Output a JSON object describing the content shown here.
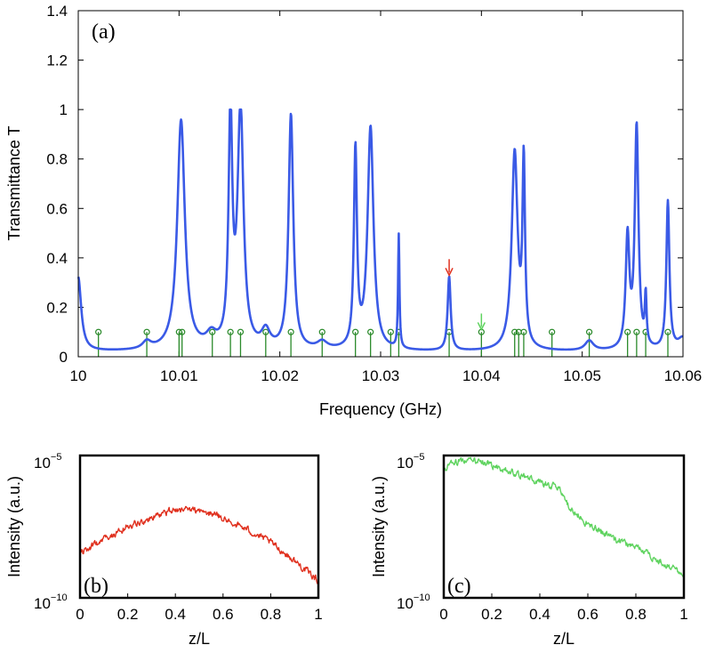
{
  "chart_data": [
    {
      "panel": "(a)",
      "type": "line",
      "xlabel": "Frequency (GHz)",
      "ylabel": "Transmittance T",
      "xlim": [
        10,
        10.06
      ],
      "ylim": [
        0,
        1.4
      ],
      "x_ticks": [
        "10",
        "10.01",
        "10.02",
        "10.03",
        "10.04",
        "10.05",
        "10.06"
      ],
      "y_ticks": [
        "0",
        "0.2",
        "0.4",
        "0.6",
        "0.8",
        "1",
        "1.2",
        "1.4"
      ],
      "series": [
        {
          "name": "Transmittance",
          "color": "#3a5ae6",
          "baseline": 0.02,
          "peaks": [
            {
              "f0": 10.0,
              "T": 0.3,
              "w": 0.00035
            },
            {
              "f0": 10.0068,
              "T": 0.03,
              "w": 0.0005
            },
            {
              "f0": 10.0102,
              "T": 0.93,
              "w": 0.00045
            },
            {
              "f0": 10.0132,
              "T": 0.05,
              "w": 0.0006
            },
            {
              "f0": 10.0151,
              "T": 0.93,
              "w": 0.00022
            },
            {
              "f0": 10.0161,
              "T": 0.97,
              "w": 0.00035
            },
            {
              "f0": 10.0186,
              "T": 0.07,
              "w": 0.0005
            },
            {
              "f0": 10.0211,
              "T": 0.95,
              "w": 0.00028
            },
            {
              "f0": 10.0242,
              "T": 0.03,
              "w": 0.0006
            },
            {
              "f0": 10.0275,
              "T": 0.8,
              "w": 0.00018
            },
            {
              "f0": 10.029,
              "T": 0.9,
              "w": 0.00035
            },
            {
              "f0": 10.0318,
              "T": 0.46,
              "w": 8e-05
            },
            {
              "f0": 10.0368,
              "T": 0.3,
              "w": 0.00018
            },
            {
              "f0": 10.0433,
              "T": 0.8,
              "w": 0.00035
            },
            {
              "f0": 10.0442,
              "T": 0.73,
              "w": 0.00015
            },
            {
              "f0": 10.0507,
              "T": 0.04,
              "w": 0.0005
            },
            {
              "f0": 10.0545,
              "T": 0.45,
              "w": 0.00022
            },
            {
              "f0": 10.0554,
              "T": 0.9,
              "w": 0.00022
            },
            {
              "f0": 10.0563,
              "T": 0.2,
              "w": 0.0001
            },
            {
              "f0": 10.0585,
              "T": 0.6,
              "w": 0.00018
            },
            {
              "f0": 10.06,
              "T": 0.05,
              "w": 0.0006
            }
          ]
        }
      ],
      "stems": {
        "name": "Eigenmode frequencies",
        "color": "#2a8a2a",
        "height": 0.1,
        "x": [
          10.002,
          10.0068,
          10.01,
          10.0103,
          10.0133,
          10.0151,
          10.0161,
          10.0186,
          10.0211,
          10.0242,
          10.0275,
          10.029,
          10.031,
          10.0318,
          10.0368,
          10.04,
          10.0433,
          10.0437,
          10.0442,
          10.047,
          10.0507,
          10.0545,
          10.0554,
          10.0563,
          10.0585
        ]
      },
      "markers": [
        {
          "name": "red-arrow",
          "x": 10.0368,
          "y": 0.33,
          "color": "#e0301e"
        },
        {
          "name": "green-arrow",
          "x": 10.04,
          "y": 0.11,
          "color": "#5fd35f"
        }
      ]
    },
    {
      "panel": "(b)",
      "type": "line",
      "xlabel": "z/L",
      "ylabel": "Intensity (a.u.)",
      "xlim": [
        0,
        1
      ],
      "y_scale": "log",
      "ylim_log10": [
        -10,
        -5
      ],
      "x_ticks": [
        "0",
        "0.2",
        "0.4",
        "0.6",
        "0.8",
        "1"
      ],
      "y_tick_base": "10",
      "y_tick_exps": [
        "−5",
        "−10"
      ],
      "series": [
        {
          "name": "Intensity at red arrow",
          "color": "#e0301e",
          "anchors": [
            [
              0,
              -8.45
            ],
            [
              0.1,
              -7.95
            ],
            [
              0.2,
              -7.5
            ],
            [
              0.3,
              -7.2
            ],
            [
              0.4,
              -6.9
            ],
            [
              0.5,
              -6.95
            ],
            [
              0.55,
              -7.05
            ],
            [
              0.6,
              -7.2
            ],
            [
              0.7,
              -7.6
            ],
            [
              0.8,
              -8.05
            ],
            [
              0.9,
              -8.7
            ],
            [
              1.0,
              -9.4
            ]
          ],
          "noise": 0.12
        }
      ]
    },
    {
      "panel": "(c)",
      "type": "line",
      "xlabel": "z/L",
      "ylabel": "Intensity (a.u.)",
      "xlim": [
        0,
        1
      ],
      "y_scale": "log",
      "ylim_log10": [
        -10,
        -5
      ],
      "x_ticks": [
        "0",
        "0.2",
        "0.4",
        "0.6",
        "0.8",
        "1"
      ],
      "y_tick_base": "10",
      "y_tick_exps": [
        "−5",
        "−10"
      ],
      "series": [
        {
          "name": "Intensity at green arrow",
          "color": "#5fd35f",
          "anchors": [
            [
              0,
              -5.45
            ],
            [
              0.05,
              -5.25
            ],
            [
              0.1,
              -5.1
            ],
            [
              0.2,
              -5.35
            ],
            [
              0.3,
              -5.6
            ],
            [
              0.4,
              -5.95
            ],
            [
              0.48,
              -6.1
            ],
            [
              0.52,
              -6.8
            ],
            [
              0.6,
              -7.4
            ],
            [
              0.7,
              -7.9
            ],
            [
              0.8,
              -8.2
            ],
            [
              0.9,
              -8.7
            ],
            [
              1.0,
              -9.2
            ]
          ],
          "noise": 0.12
        }
      ]
    }
  ]
}
